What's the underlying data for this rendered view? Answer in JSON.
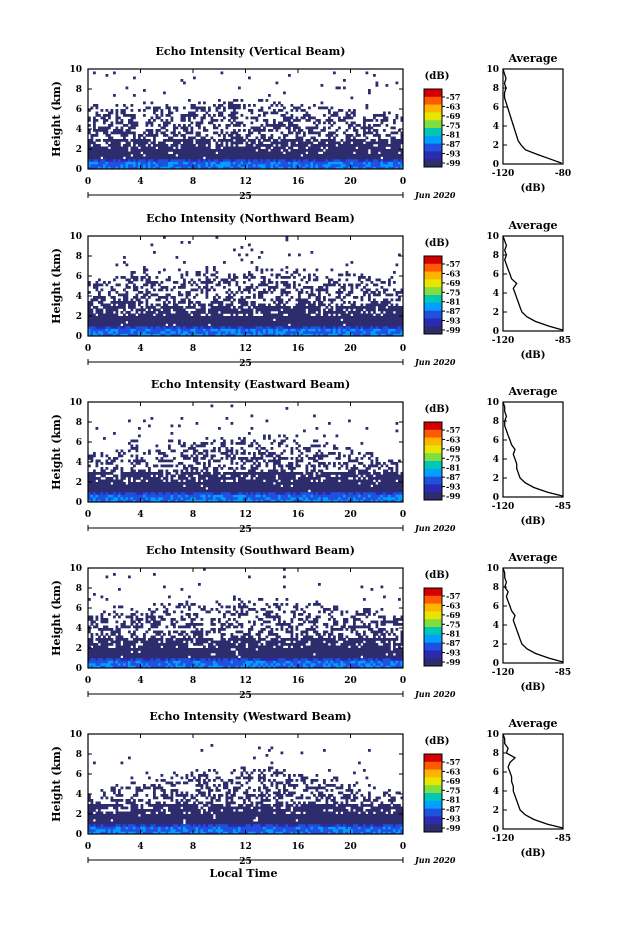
{
  "chart_data": [
    {
      "type": "heatmap",
      "title": "Echo Intensity (Vertical Beam)",
      "ylabel": "Height (km)",
      "xlabel": "",
      "x_ticks": [
        "0",
        "4",
        "8",
        "12",
        "16",
        "20",
        "0"
      ],
      "y_ticks": [
        "0",
        "2",
        "4",
        "6",
        "8",
        "10"
      ],
      "day_label": "25",
      "month_label": "Jun 2020",
      "xlim": [
        0,
        24
      ],
      "ylim": [
        0,
        10
      ],
      "echo_top_km": [
        6.2,
        6.0,
        6.3,
        6.1,
        6.5,
        6.4,
        6.2,
        6.6,
        6.8,
        6.5,
        7.0,
        6.8,
        6.4,
        7.2,
        6.9,
        6.6,
        6.3,
        6.7,
        6.2,
        6.0,
        5.8,
        6.1,
        5.6,
        5.4
      ],
      "colorbar": {
        "unit": "(dB)",
        "labels": [
          "-57",
          "-63",
          "-69",
          "-75",
          "-81",
          "-87",
          "-93",
          "-99"
        ],
        "colors": [
          "#d40000",
          "#ff5a00",
          "#ffb400",
          "#e6e600",
          "#7fdf40",
          "#00c8b4",
          "#00a0ff",
          "#2050e0",
          "#2a2ab4",
          "#2d2d6e"
        ]
      },
      "profile": {
        "title": "Average",
        "xlabel": "(dB)",
        "x_ticks": [
          "-120",
          "-80"
        ],
        "xlim": [
          -120,
          -80
        ],
        "y_ticks": [
          "0",
          "2",
          "4",
          "6",
          "8",
          "10"
        ],
        "x": [
          -81,
          -88,
          -97,
          -105,
          -108,
          -110,
          -111,
          -112,
          -113,
          -114,
          -115,
          -116,
          -117,
          -118,
          -119,
          -119,
          -118,
          -119,
          -118,
          -119,
          -120
        ],
        "y": [
          0.1,
          0.5,
          1.0,
          1.5,
          2.0,
          2.5,
          3.0,
          3.5,
          4.0,
          4.5,
          5.0,
          5.5,
          6.0,
          6.5,
          7.0,
          7.5,
          8.0,
          8.5,
          9.0,
          9.5,
          10.0
        ]
      }
    },
    {
      "type": "heatmap",
      "title": "Echo Intensity (Northward Beam)",
      "ylabel": "Height (km)",
      "xlabel": "",
      "x_ticks": [
        "0",
        "4",
        "8",
        "12",
        "16",
        "20",
        "0"
      ],
      "y_ticks": [
        "0",
        "2",
        "4",
        "6",
        "8",
        "10"
      ],
      "day_label": "25",
      "month_label": "Jun 2020",
      "xlim": [
        0,
        24
      ],
      "ylim": [
        0,
        10
      ],
      "echo_top_km": [
        5.8,
        5.6,
        6.0,
        6.2,
        6.8,
        6.5,
        6.0,
        6.3,
        6.6,
        6.9,
        6.4,
        6.2,
        6.7,
        6.5,
        6.8,
        7.0,
        6.6,
        6.2,
        6.0,
        6.3,
        5.9,
        5.8,
        5.6,
        5.2
      ],
      "colorbar": {
        "unit": "(dB)",
        "labels": [
          "-57",
          "-63",
          "-69",
          "-75",
          "-81",
          "-87",
          "-93",
          "-99"
        ],
        "colors": [
          "#d40000",
          "#ff5a00",
          "#ffb400",
          "#e6e600",
          "#7fdf40",
          "#00c8b4",
          "#00a0ff",
          "#2050e0",
          "#2a2ab4",
          "#2d2d6e"
        ]
      },
      "profile": {
        "title": "Average",
        "xlabel": "(dB)",
        "x_ticks": [
          "-120",
          "-85"
        ],
        "xlim": [
          -120,
          -85
        ],
        "y_ticks": [
          "0",
          "2",
          "4",
          "6",
          "8",
          "10"
        ],
        "x": [
          -85,
          -93,
          -101,
          -106,
          -109,
          -110,
          -111,
          -112,
          -113,
          -114,
          -112,
          -115,
          -116,
          -117,
          -118,
          -119,
          -118,
          -119,
          -118,
          -119,
          -120
        ],
        "y": [
          0.1,
          0.5,
          1.0,
          1.5,
          2.0,
          2.5,
          3.0,
          3.5,
          4.0,
          4.5,
          5.0,
          5.5,
          6.0,
          6.5,
          7.0,
          7.5,
          8.0,
          8.5,
          9.0,
          9.5,
          10.0
        ]
      }
    },
    {
      "type": "heatmap",
      "title": "Echo Intensity (Eastward Beam)",
      "ylabel": "Height (km)",
      "xlabel": "",
      "x_ticks": [
        "0",
        "4",
        "8",
        "12",
        "16",
        "20",
        "0"
      ],
      "y_ticks": [
        "0",
        "2",
        "4",
        "6",
        "8",
        "10"
      ],
      "day_label": "25",
      "month_label": "Jun 2020",
      "xlim": [
        0,
        24
      ],
      "ylim": [
        0,
        10
      ],
      "echo_top_km": [
        4.8,
        5.0,
        5.4,
        6.0,
        5.2,
        5.6,
        6.2,
        5.8,
        6.0,
        6.4,
        6.3,
        6.6,
        6.2,
        6.8,
        6.5,
        6.4,
        6.2,
        6.0,
        5.8,
        5.4,
        5.2,
        5.0,
        4.6,
        4.4
      ],
      "colorbar": {
        "unit": "(dB)",
        "labels": [
          "-57",
          "-63",
          "-69",
          "-75",
          "-81",
          "-87",
          "-93",
          "-99"
        ],
        "colors": [
          "#d40000",
          "#ff5a00",
          "#ffb400",
          "#e6e600",
          "#7fdf40",
          "#00c8b4",
          "#00a0ff",
          "#2050e0",
          "#2a2ab4",
          "#2d2d6e"
        ]
      },
      "profile": {
        "title": "Average",
        "xlabel": "(dB)",
        "x_ticks": [
          "-120",
          "-85"
        ],
        "xlim": [
          -120,
          -85
        ],
        "y_ticks": [
          "0",
          "2",
          "4",
          "6",
          "8",
          "10"
        ],
        "x": [
          -85,
          -94,
          -102,
          -107,
          -110,
          -111,
          -112,
          -112,
          -113,
          -114,
          -113,
          -115,
          -116,
          -117,
          -118,
          -119,
          -119,
          -118,
          -119,
          -119,
          -120
        ],
        "y": [
          0.1,
          0.5,
          1.0,
          1.5,
          2.0,
          2.5,
          3.0,
          3.5,
          4.0,
          4.5,
          5.0,
          5.5,
          6.0,
          6.5,
          7.0,
          7.5,
          8.0,
          8.5,
          9.0,
          9.5,
          10.0
        ]
      }
    },
    {
      "type": "heatmap",
      "title": "Echo Intensity (Southward Beam)",
      "ylabel": "Height (km)",
      "xlabel": "",
      "x_ticks": [
        "0",
        "4",
        "8",
        "12",
        "16",
        "20",
        "0"
      ],
      "y_ticks": [
        "0",
        "2",
        "4",
        "6",
        "8",
        "10"
      ],
      "day_label": "25",
      "month_label": "Jun 2020",
      "xlim": [
        0,
        24
      ],
      "ylim": [
        0,
        10
      ],
      "echo_top_km": [
        5.6,
        5.8,
        6.0,
        6.2,
        6.0,
        6.4,
        6.2,
        6.6,
        6.5,
        6.8,
        6.3,
        6.9,
        6.6,
        7.2,
        6.8,
        6.6,
        6.4,
        6.5,
        6.2,
        6.0,
        5.8,
        6.0,
        5.6,
        5.2
      ],
      "colorbar": {
        "unit": "(dB)",
        "labels": [
          "-57",
          "-63",
          "-69",
          "-75",
          "-81",
          "-87",
          "-93",
          "-99"
        ],
        "colors": [
          "#d40000",
          "#ff5a00",
          "#ffb400",
          "#e6e600",
          "#7fdf40",
          "#00c8b4",
          "#00a0ff",
          "#2050e0",
          "#2a2ab4",
          "#2d2d6e"
        ]
      },
      "profile": {
        "title": "Average",
        "xlabel": "(dB)",
        "x_ticks": [
          "-120",
          "-85"
        ],
        "xlim": [
          -120,
          -85
        ],
        "y_ticks": [
          "0",
          "2",
          "4",
          "6",
          "8",
          "10"
        ],
        "x": [
          -85,
          -93,
          -101,
          -106,
          -109,
          -110,
          -111,
          -112,
          -113,
          -114,
          -113,
          -115,
          -116,
          -117,
          -118,
          -117,
          -119,
          -118,
          -119,
          -119,
          -120
        ],
        "y": [
          0.1,
          0.5,
          1.0,
          1.5,
          2.0,
          2.5,
          3.0,
          3.5,
          4.0,
          4.5,
          5.0,
          5.5,
          6.0,
          6.5,
          7.0,
          7.5,
          8.0,
          8.5,
          9.0,
          9.5,
          10.0
        ]
      }
    },
    {
      "type": "heatmap",
      "title": "Echo Intensity (Westward Beam)",
      "ylabel": "Height (km)",
      "xlabel": "Local Time",
      "x_ticks": [
        "0",
        "4",
        "8",
        "12",
        "16",
        "20",
        "0"
      ],
      "y_ticks": [
        "0",
        "2",
        "4",
        "6",
        "8",
        "10"
      ],
      "day_label": "25",
      "month_label": "Jun 2020",
      "xlim": [
        0,
        24
      ],
      "ylim": [
        0,
        10
      ],
      "echo_top_km": [
        4.4,
        4.6,
        5.0,
        5.6,
        5.2,
        5.8,
        6.0,
        6.2,
        6.4,
        6.6,
        6.5,
        6.8,
        6.3,
        6.6,
        6.4,
        6.2,
        6.0,
        5.8,
        5.6,
        5.4,
        5.0,
        4.8,
        4.6,
        4.2
      ],
      "colorbar": {
        "unit": "(dB)",
        "labels": [
          "-57",
          "-63",
          "-69",
          "-75",
          "-81",
          "-87",
          "-93",
          "-99"
        ],
        "colors": [
          "#d40000",
          "#ff5a00",
          "#ffb400",
          "#e6e600",
          "#7fdf40",
          "#00c8b4",
          "#00a0ff",
          "#2050e0",
          "#2a2ab4",
          "#2d2d6e"
        ]
      },
      "profile": {
        "title": "Average",
        "xlabel": "(dB)",
        "x_ticks": [
          "-120",
          "-85"
        ],
        "xlim": [
          -120,
          -85
        ],
        "y_ticks": [
          "0",
          "2",
          "4",
          "6",
          "8",
          "10"
        ],
        "x": [
          -85,
          -94,
          -102,
          -107,
          -110,
          -111,
          -112,
          -113,
          -114,
          -114,
          -115,
          -115,
          -116,
          -117,
          -116,
          -113,
          -118,
          -117,
          -119,
          -119,
          -120
        ],
        "y": [
          0.1,
          0.5,
          1.0,
          1.5,
          2.0,
          2.5,
          3.0,
          3.5,
          4.0,
          4.5,
          5.0,
          5.5,
          6.0,
          6.5,
          7.0,
          7.5,
          8.0,
          8.5,
          9.0,
          9.5,
          10.0
        ]
      }
    }
  ]
}
